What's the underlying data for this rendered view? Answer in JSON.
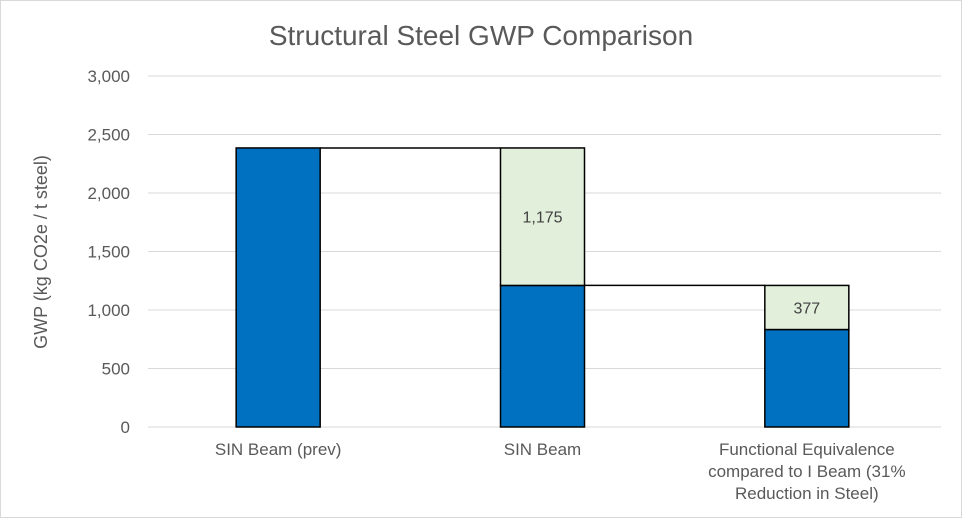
{
  "chart_data": {
    "type": "bar",
    "subtype": "waterfall",
    "title": "Structural Steel GWP Comparison",
    "xlabel": "",
    "ylabel": "GWP (kg CO2e / t steel)",
    "ylim": [
      0,
      3000
    ],
    "yticks": [
      0,
      500,
      1000,
      1500,
      2000,
      2500,
      3000
    ],
    "ytick_labels": [
      "0",
      "500",
      "1,000",
      "1,500",
      "2,000",
      "2,500",
      "3,000"
    ],
    "grid": true,
    "legend": "none",
    "categories": [
      [
        "SIN Beam (prev)"
      ],
      [
        "SIN Beam"
      ],
      [
        "Functional Equivalence",
        "compared to I Beam (31%",
        "Reduction in Steel)"
      ]
    ],
    "series": [
      {
        "role": "total",
        "color": "#0070C0",
        "values": [
          2385,
          1210,
          833
        ]
      },
      {
        "role": "reduction",
        "color": "#E2EFDA",
        "values": [
          0,
          1175,
          377
        ],
        "labels": [
          "",
          "1,175",
          "377"
        ]
      }
    ],
    "colors": {
      "base": "#0070C0",
      "reduction": "#E2EFDA",
      "grid": "#d9d9d9",
      "text": "#595959",
      "outline": "#000000"
    }
  }
}
